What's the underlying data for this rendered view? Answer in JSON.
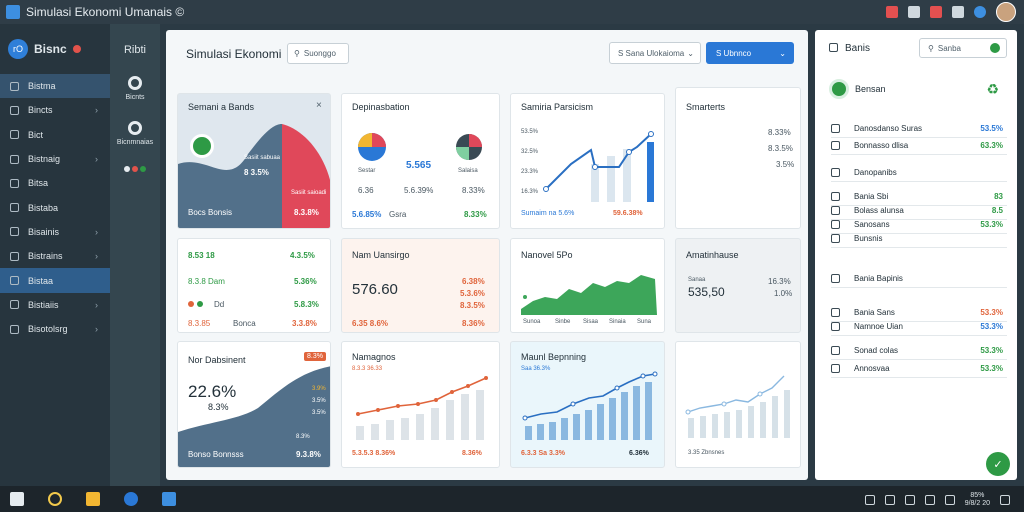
{
  "window": {
    "title": "Simulasi Ekonomi Umanais ©"
  },
  "sidebar": {
    "brand": "Bisnc",
    "brand_logo_text": "rO",
    "items": [
      {
        "label": "Bistma",
        "active": "soft"
      },
      {
        "label": "Bincts",
        "chevron": "›"
      },
      {
        "label": "Bict",
        "chevron": ""
      },
      {
        "label": "Bistnaig",
        "chevron": "›"
      },
      {
        "label": "Bitsa",
        "chevron": ""
      },
      {
        "label": "Bistaba",
        "chevron": ""
      },
      {
        "label": "Bisainis",
        "chevron": "›"
      },
      {
        "label": "Bistrains",
        "chevron": "›"
      },
      {
        "label": "Bistaa",
        "active": "strong"
      },
      {
        "label": "Bistiaiis",
        "chevron": "›"
      },
      {
        "label": "Bisotolsrg",
        "chevron": "›"
      }
    ]
  },
  "rail": {
    "title": "Ribti",
    "items": [
      {
        "label": "Bicnts"
      },
      {
        "label": "Bicnmnaias"
      }
    ]
  },
  "header": {
    "title": "Simulasi Ekonomi",
    "search_placeholder": "Suonggo",
    "select_value": "S Sana Ulokaioma",
    "primary_button": "S Ubnnco"
  },
  "cards": {
    "hero": {
      "title": "Semani a Bands",
      "value1": "8 3.5%",
      "label1": "Sasiit sabuaa",
      "label2": "Sasiit saioadi",
      "footer_label": "Bocs Bonsis",
      "footer_value": "8.3.8%"
    },
    "distribution": {
      "title": "Depinasbation",
      "center_value": "5.565",
      "label_a": "Sestar",
      "label_b": "Salaisa",
      "val_a": "6.36",
      "val_b": "8.33%",
      "val_c": "5.6.39%",
      "footer_a": "5.6.85%",
      "footer_a_label": "Gsra",
      "footer_b": "8.33%"
    },
    "line1": {
      "title": "Samiria Parsicism",
      "y_ticks": [
        "53.5%",
        "32.5%",
        "23.3%",
        "16.3%"
      ],
      "footer_a": "Sumaim na 5.6%",
      "footer_b": "59.6.38%"
    },
    "side_top": {
      "title": "Smarterts",
      "values": [
        "8.33%",
        "8.3.5%",
        "3.5%"
      ]
    },
    "kpi_list": {
      "title": "8.53 18",
      "title_value": "4.3.5%",
      "row1": "8.3.8 Dam",
      "row1_value": "5.36%",
      "row2": "Dd",
      "row2_value": "5.8.3%",
      "row3": "8.3.85",
      "row3_label": "Bonca",
      "row3_value": "3.3.8%"
    },
    "kpi_big": {
      "title": "Nam Uansirgo",
      "value": "576.60",
      "side1": "6.38%",
      "side2": "5.3.6%",
      "side3": "8.3.5%",
      "footer_a": "6.35 8.6%",
      "footer_b": "8.36%"
    },
    "area_green": {
      "title": "Nanovel 5Po",
      "x_ticks": [
        "Sunoa",
        "Sinbe",
        "Sisaa",
        "Sinaia",
        "Suna"
      ]
    },
    "side_mid": {
      "title": "Amatinhause",
      "label": "Sanaa",
      "value": "535,50",
      "side1": "16.3%",
      "side2": "1.0%"
    },
    "area_blue": {
      "title": "Nor Dabsinent",
      "value": "22.6%",
      "value2": "8.3%",
      "badge": "8.3%",
      "vals": [
        "3.9%",
        "3.5%",
        "3.5%",
        "8.3%"
      ],
      "footer_label": "Bonso Bonnsss",
      "footer_value": "9.3.8%"
    },
    "bars_red": {
      "title": "Namagnos",
      "subtitle": "8.3.3 36.33",
      "footer_a": "5.3.5.3 8.36%",
      "footer_b": "8.36%"
    },
    "bars_blue": {
      "title": "Maunl Bepnning",
      "subtitle": "Saa 36.3%",
      "footer_a": "6.3.3 Sa 3.3%",
      "footer_b": "6.36%"
    },
    "side_bottom": {
      "footer": "3.35 Zbnsnes"
    }
  },
  "right_panel": {
    "title": "Banis",
    "search_placeholder": "Sanba",
    "account": "Bensan",
    "rows": [
      {
        "label": "Danosdanso Suras",
        "value": "53.5%",
        "color": "blue"
      },
      {
        "label": "Bonnasso dlisa",
        "value": "63.3%",
        "color": "green"
      },
      {
        "label": "Danopanibs",
        "value": "",
        "color": ""
      },
      {
        "label": "Bania Sbi",
        "value": "83",
        "color": "green"
      },
      {
        "label": "Bolass alunsa",
        "value": "8.5",
        "color": "green"
      },
      {
        "label": "Sanosans",
        "value": "53.3%",
        "color": "green"
      },
      {
        "label": "Bunsnis",
        "value": "",
        "color": ""
      },
      {
        "label": "Bania Bapinis",
        "value": "",
        "color": ""
      },
      {
        "label": "Bania Sans",
        "value": "53.3%",
        "color": "red"
      },
      {
        "label": "Namnoe Uian",
        "value": "53.3%",
        "color": "blue"
      },
      {
        "label": "Sonad colas",
        "value": "53.3%",
        "color": "green"
      },
      {
        "label": "Annosvaa",
        "value": "53.3%",
        "color": "green"
      }
    ]
  },
  "taskbar": {
    "clock": "85%",
    "date": "9/8/2 20"
  },
  "colors": {
    "accent": "#2a78d6",
    "positive": "#2e9a45",
    "negative": "#e0643b",
    "danger": "#e2534b"
  }
}
